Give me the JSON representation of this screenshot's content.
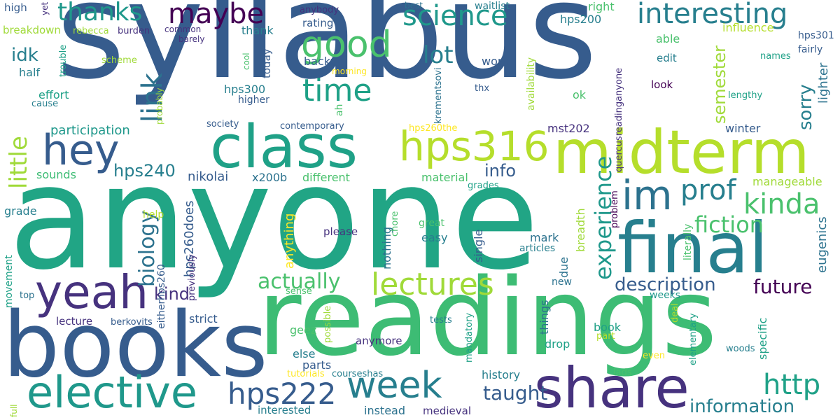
{
  "palette": [
    "#440154",
    "#46327e",
    "#365c8d",
    "#277f8e",
    "#1fa187",
    "#4ac16d",
    "#a0da39",
    "#fde725"
  ],
  "words": [
    {
      "text": "syllabus",
      "color": "#365c8d"
    },
    {
      "text": "anyone",
      "color": "#21a585"
    },
    {
      "text": "readings",
      "color": "#3dbc74"
    },
    {
      "text": "books",
      "color": "#365c8d"
    },
    {
      "text": "midterm",
      "color": "#b5de2b"
    },
    {
      "text": "class",
      "color": "#1fa187"
    },
    {
      "text": "final",
      "color": "#277f8e"
    },
    {
      "text": "share",
      "color": "#46327e"
    },
    {
      "text": "elective",
      "color": "#1f988b"
    },
    {
      "text": "yeah",
      "color": "#46327e"
    },
    {
      "text": "hey",
      "color": "#365c8d"
    },
    {
      "text": "week",
      "color": "#277f8e"
    },
    {
      "text": "hps316",
      "color": "#b5de2b"
    },
    {
      "text": "hps222",
      "color": "#365c8d"
    },
    {
      "text": "im",
      "color": "#2c728e"
    },
    {
      "text": "good",
      "color": "#4ac16d"
    },
    {
      "text": "science",
      "color": "#1f988b"
    },
    {
      "text": "lectures",
      "color": "#a0da39"
    },
    {
      "text": "time",
      "color": "#1fa187"
    },
    {
      "text": "lot",
      "color": "#277f8e"
    },
    {
      "text": "link",
      "color": "#2c728e"
    },
    {
      "text": "little",
      "color": "#a0da39"
    },
    {
      "text": "thanks",
      "color": "#1f988b"
    },
    {
      "text": "maybe",
      "color": "#440154"
    },
    {
      "text": "interesting",
      "color": "#277f8e"
    },
    {
      "text": "prof",
      "color": "#277f8e"
    },
    {
      "text": "kinda",
      "color": "#4ac16d"
    },
    {
      "text": "http",
      "color": "#1fa187"
    },
    {
      "text": "fiction",
      "color": "#4ac16d"
    },
    {
      "text": "experience",
      "color": "#1f988b"
    },
    {
      "text": "biology",
      "color": "#2c728e"
    },
    {
      "text": "actually",
      "color": "#4ac16d"
    },
    {
      "text": "future",
      "color": "#440154"
    },
    {
      "text": "description",
      "color": "#365c8d"
    },
    {
      "text": "taught",
      "color": "#365c8d"
    },
    {
      "text": "information",
      "color": "#277f8e"
    },
    {
      "text": "semester",
      "color": "#a0da39"
    },
    {
      "text": "sorry",
      "color": "#277f8e"
    },
    {
      "text": "hps240",
      "color": "#277f8e"
    },
    {
      "text": "idk",
      "color": "#277f8e"
    },
    {
      "text": "kind",
      "color": "#46327e"
    },
    {
      "text": "info",
      "color": "#365c8d"
    },
    {
      "text": "lighter",
      "color": "#2c728e"
    },
    {
      "text": "eugenics",
      "color": "#2c728e"
    },
    {
      "text": "participation",
      "color": "#1f988b"
    },
    {
      "text": "sounds",
      "color": "#3dbc74"
    },
    {
      "text": "nikolai",
      "color": "#365c8d"
    },
    {
      "text": "x200b",
      "color": "#2c728e"
    },
    {
      "text": "different",
      "color": "#4ac16d"
    },
    {
      "text": "material",
      "color": "#4ac16d"
    },
    {
      "text": "grades",
      "color": "#1fa187"
    },
    {
      "text": "manageable",
      "color": "#a0da39"
    },
    {
      "text": "grade",
      "color": "#277f8e"
    },
    {
      "text": "help",
      "color": "#b5de2b"
    },
    {
      "text": "hps260does",
      "color": "#365c8d"
    },
    {
      "text": "please",
      "color": "#46327e"
    },
    {
      "text": "anything",
      "color": "#fde725"
    },
    {
      "text": "nothing",
      "color": "#2c728e"
    },
    {
      "text": "chore",
      "color": "#4ac16d"
    },
    {
      "text": "great",
      "color": "#4ac16d"
    },
    {
      "text": "easy",
      "color": "#277f8e"
    },
    {
      "text": "single",
      "color": "#365c8d"
    },
    {
      "text": "mark",
      "color": "#2c728e"
    },
    {
      "text": "articles",
      "color": "#277f8e"
    },
    {
      "text": "due",
      "color": "#2c728e"
    },
    {
      "text": "breadth",
      "color": "#a0da39"
    },
    {
      "text": "problem",
      "color": "#440154"
    },
    {
      "text": "literally",
      "color": "#4ac16d"
    },
    {
      "text": "movement",
      "color": "#1fa187"
    },
    {
      "text": "eitherhps260",
      "color": "#365c8d"
    },
    {
      "text": "previously",
      "color": "#46327e"
    },
    {
      "text": "top",
      "color": "#2c728e"
    },
    {
      "text": "lecture",
      "color": "#46327e"
    },
    {
      "text": "berkovits",
      "color": "#365c8d"
    },
    {
      "text": "strict",
      "color": "#365c8d"
    },
    {
      "text": "geez",
      "color": "#4ac16d"
    },
    {
      "text": "else",
      "color": "#277f8e"
    },
    {
      "text": "parts",
      "color": "#365c8d"
    },
    {
      "text": "tutorials",
      "color": "#fde725"
    },
    {
      "text": "courseshas",
      "color": "#277f8e"
    },
    {
      "text": "anymore",
      "color": "#46327e"
    },
    {
      "text": "possible",
      "color": "#a0da39"
    },
    {
      "text": "tests",
      "color": "#277f8e"
    },
    {
      "text": "sense",
      "color": "#4ac16d"
    },
    {
      "text": "things",
      "color": "#2c728e"
    },
    {
      "text": "mandatory",
      "color": "#1fa187"
    },
    {
      "text": "drop",
      "color": "#1fa187"
    },
    {
      "text": "new",
      "color": "#2c728e"
    },
    {
      "text": "book",
      "color": "#1fa187"
    },
    {
      "text": "part",
      "color": "#b5de2b"
    },
    {
      "text": "weeks",
      "color": "#1f988b"
    },
    {
      "text": "deal",
      "color": "#b5de2b"
    },
    {
      "text": "elementary",
      "color": "#1fa187"
    },
    {
      "text": "specific",
      "color": "#1fa187"
    },
    {
      "text": "woods",
      "color": "#277f8e"
    },
    {
      "text": "even",
      "color": "#fde725"
    },
    {
      "text": "lads",
      "color": "#4ac16d"
    },
    {
      "text": "history",
      "color": "#277f8e"
    },
    {
      "text": "interested",
      "color": "#277f8e"
    },
    {
      "text": "instead",
      "color": "#2c728e"
    },
    {
      "text": "medieval",
      "color": "#46327e"
    },
    {
      "text": "full",
      "color": "#a0da39"
    },
    {
      "text": "high",
      "color": "#365c8d"
    },
    {
      "text": "yet",
      "color": "#46327e"
    },
    {
      "text": "breakdown",
      "color": "#a0da39"
    },
    {
      "text": "rebecca",
      "color": "#a0da39"
    },
    {
      "text": "burden",
      "color": "#46327e"
    },
    {
      "text": "common",
      "color": "#46327e"
    },
    {
      "text": "barely",
      "color": "#46327e"
    },
    {
      "text": "thank",
      "color": "#277f8e"
    },
    {
      "text": "anybody",
      "color": "#46327e"
    },
    {
      "text": "rating",
      "color": "#365c8d"
    },
    {
      "text": "backup",
      "color": "#365c8d"
    },
    {
      "text": "morning",
      "color": "#fde725"
    },
    {
      "text": "best",
      "color": "#2c728e"
    },
    {
      "text": "waitlist",
      "color": "#277f8e"
    },
    {
      "text": "right",
      "color": "#4ac16d"
    },
    {
      "text": "hps200",
      "color": "#277f8e"
    },
    {
      "text": "quercusreadinganyone",
      "color": "#46327e"
    },
    {
      "text": "able",
      "color": "#4ac16d"
    },
    {
      "text": "influence",
      "color": "#b5de2b"
    },
    {
      "text": "hps301",
      "color": "#365c8d"
    },
    {
      "text": "names",
      "color": "#1fa187"
    },
    {
      "text": "fairly",
      "color": "#365c8d"
    },
    {
      "text": "edit",
      "color": "#277f8e"
    },
    {
      "text": "look",
      "color": "#440154"
    },
    {
      "text": "lengthy",
      "color": "#1fa187"
    },
    {
      "text": "work",
      "color": "#365c8d"
    },
    {
      "text": "availability",
      "color": "#a0da39"
    },
    {
      "text": "ok",
      "color": "#4ac16d"
    },
    {
      "text": "thx",
      "color": "#365c8d"
    },
    {
      "text": "krementsovi",
      "color": "#2c728e"
    },
    {
      "text": "hps260the",
      "color": "#fde725"
    },
    {
      "text": "mst202",
      "color": "#46327e"
    },
    {
      "text": "winter",
      "color": "#365c8d"
    },
    {
      "text": "contemporary",
      "color": "#365c8d"
    },
    {
      "text": "society",
      "color": "#365c8d"
    },
    {
      "text": "ah",
      "color": "#4ac16d"
    },
    {
      "text": "hps300",
      "color": "#277f8e"
    },
    {
      "text": "higher",
      "color": "#365c8d"
    },
    {
      "text": "today",
      "color": "#365c8d"
    },
    {
      "text": "cool",
      "color": "#4ac16d"
    },
    {
      "text": "scheme",
      "color": "#a0da39"
    },
    {
      "text": "trouble",
      "color": "#1fa187"
    },
    {
      "text": "half",
      "color": "#277f8e"
    },
    {
      "text": "effort",
      "color": "#1fa187"
    },
    {
      "text": "cause",
      "color": "#277f8e"
    },
    {
      "text": "probably",
      "color": "#a0da39"
    }
  ]
}
